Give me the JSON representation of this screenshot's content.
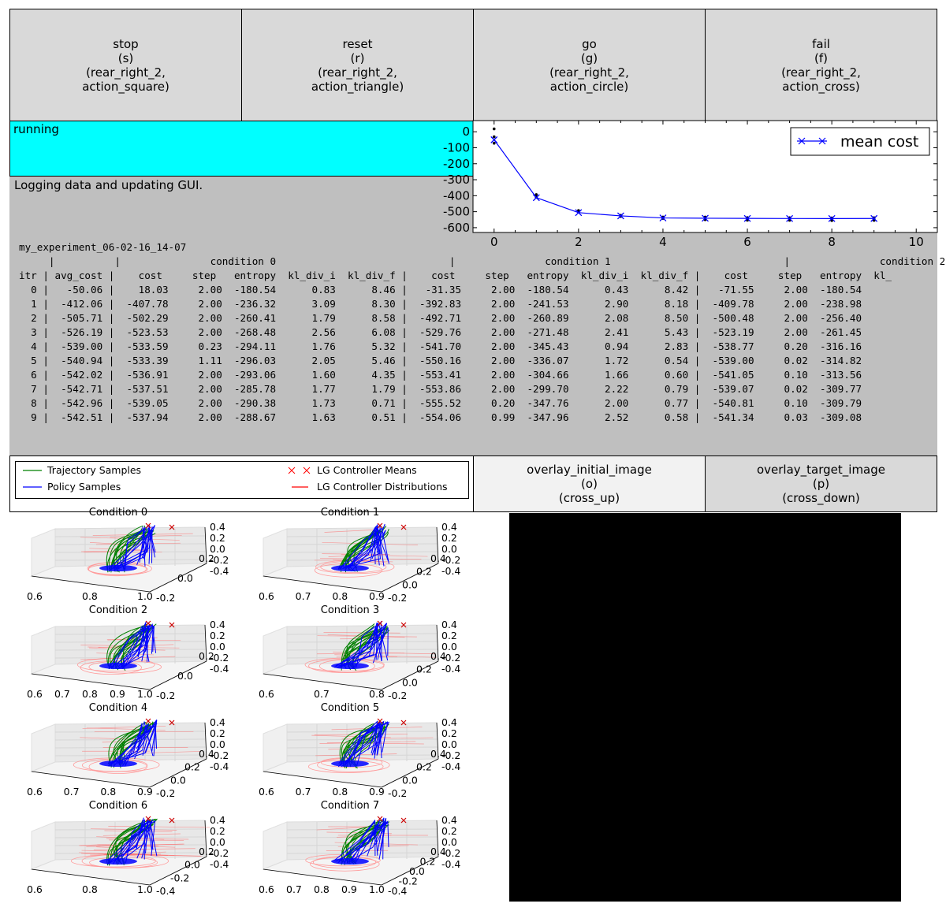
{
  "actions": [
    {
      "label": "stop",
      "key": "(s)",
      "trigger1": "(rear_right_2,",
      "trigger2": "action_square)"
    },
    {
      "label": "reset",
      "key": "(r)",
      "trigger1": "(rear_right_2,",
      "trigger2": "action_triangle)"
    },
    {
      "label": "go",
      "key": "(g)",
      "trigger1": "(rear_right_2,",
      "trigger2": "action_circle)"
    },
    {
      "label": "fail",
      "key": "(f)",
      "trigger1": "(rear_right_2,",
      "trigger2": "action_cross)"
    }
  ],
  "status": {
    "text": "running",
    "color": "#00ffff"
  },
  "message": "Logging data and updating GUI.",
  "experiment_name": "my_experiment_06-02-16_14-07",
  "table": {
    "group_header": "     |          |               condition 0                             |               condition 1                             |               condition 2",
    "column_header": "itr | avg_cost |    cost     step   entropy  kl_div_i  kl_div_f |    cost     step   entropy  kl_div_i  kl_div_f |    cost     step   entropy  kl_",
    "rows": [
      "  0 |   -50.06 |    18.03     2.00  -180.54      0.83      8.46 |   -31.35     2.00  -180.54      0.43      8.42 |   -71.55     2.00  -180.54",
      "  1 |  -412.06 |  -407.78     2.00  -236.32      3.09      8.30 |  -392.83     2.00  -241.53      2.90      8.18 |  -409.78     2.00  -238.98",
      "  2 |  -505.71 |  -502.29     2.00  -260.41      1.79      8.58 |  -492.71     2.00  -260.89      2.08      8.50 |  -500.48     2.00  -256.40",
      "  3 |  -526.19 |  -523.53     2.00  -268.48      2.56      6.08 |  -529.76     2.00  -271.48      2.41      5.43 |  -523.19     2.00  -261.45",
      "  4 |  -539.00 |  -533.59     0.23  -294.11      1.76      5.32 |  -541.70     2.00  -345.43      0.94      2.83 |  -538.77     0.20  -316.16",
      "  5 |  -540.94 |  -533.39     1.11  -296.03      2.05      5.46 |  -550.16     2.00  -336.07      1.72      0.54 |  -539.00     0.02  -314.82",
      "  6 |  -542.02 |  -536.91     2.00  -293.06      1.60      4.35 |  -553.41     2.00  -304.66      1.66      0.60 |  -541.05     0.10  -313.56",
      "  7 |  -542.71 |  -537.51     2.00  -285.78      1.77      1.79 |  -553.86     2.00  -299.70      2.22      0.79 |  -539.07     0.02  -309.77",
      "  8 |  -542.96 |  -539.05     2.00  -290.38      1.73      0.71 |  -555.52     0.20  -347.76      2.00      0.77 |  -540.81     0.10  -309.79",
      "  9 |  -542.51 |  -537.94     2.00  -288.67      1.63      0.51 |  -554.06     0.99  -347.96      2.52      0.58 |  -541.34     0.03  -309.08"
    ]
  },
  "chart_data": {
    "type": "line",
    "x": [
      0,
      1,
      2,
      3,
      4,
      5,
      6,
      7,
      8,
      9
    ],
    "series": [
      {
        "name": "mean cost",
        "values": [
          -50.06,
          -412.06,
          -505.71,
          -526.19,
          -539.0,
          -540.94,
          -542.02,
          -542.71,
          -542.96,
          -542.51
        ],
        "color": "#0000ff",
        "marker": "x"
      }
    ],
    "samples": [
      [
        18.03,
        -31.35,
        -71.55
      ],
      [
        -407.78,
        -392.83,
        -409.78
      ],
      [
        -502.29,
        -492.71,
        -500.48
      ],
      [
        -523.53,
        -529.76,
        -523.19
      ],
      [
        -533.59,
        -541.7,
        -538.77
      ],
      [
        -533.39,
        -550.16,
        -539.0
      ],
      [
        -536.91,
        -553.41,
        -541.05
      ],
      [
        -537.51,
        -553.86,
        -539.07
      ],
      [
        -539.05,
        -555.52,
        -540.81
      ],
      [
        -537.94,
        -554.06,
        -541.34
      ]
    ],
    "xlim": [
      -0.5,
      10.5
    ],
    "ylim": [
      -630,
      70
    ],
    "xticks": [
      0,
      2,
      4,
      6,
      8,
      10
    ],
    "yticks": [
      0,
      -100,
      -200,
      -300,
      -400,
      -500,
      -600
    ],
    "legend_position": "top-right",
    "grid": false
  },
  "traj_legend": {
    "trajectory": "Trajectory Samples",
    "policy": "Policy Samples",
    "means": "LG Controller Means",
    "dists": "LG Controller Distributions"
  },
  "overlay_buttons": [
    {
      "label": "overlay_initial_image",
      "key": "(o)",
      "trigger": "(cross_up)"
    },
    {
      "label": "overlay_target_image",
      "key": "(p)",
      "trigger": "(cross_down)"
    }
  ],
  "conditions": [
    {
      "title": "Condition 0",
      "xticks": [
        "0.6",
        "0.8",
        "1.0"
      ],
      "yticks": [
        "-0.2",
        "0.0",
        "0.2"
      ],
      "zticks": [
        "0.4",
        "0.2",
        "0.0",
        "-0.2",
        "-0.4"
      ]
    },
    {
      "title": "Condition 1",
      "xticks": [
        "0.6",
        "0.7",
        "0.8",
        "0.9"
      ],
      "yticks": [
        "-0.2",
        "0.0",
        "0.2",
        "0.4"
      ],
      "zticks": [
        "0.4",
        "0.2",
        "0.0",
        "-0.2",
        "-0.4"
      ]
    },
    {
      "title": "Condition 2",
      "xticks": [
        "0.6",
        "0.7",
        "0.8",
        "0.9",
        "1.0"
      ],
      "yticks": [
        "-0.2",
        "0.0",
        "0.2"
      ],
      "zticks": [
        "0.4",
        "0.2",
        "0.0",
        "-0.2",
        "-0.4"
      ]
    },
    {
      "title": "Condition 3",
      "xticks": [
        "0.6",
        "0.7",
        "0.8"
      ],
      "yticks": [
        "-0.2",
        "0.0",
        "0.2",
        "0.4"
      ],
      "zticks": [
        "0.4",
        "0.2",
        "0.0",
        "-0.2",
        "-0.4"
      ]
    },
    {
      "title": "Condition 4",
      "xticks": [
        "0.6",
        "0.7",
        "0.8",
        "0.9"
      ],
      "yticks": [
        "-0.2",
        "0.0",
        "0.2",
        "0.4"
      ],
      "zticks": [
        "0.4",
        "0.2",
        "0.0",
        "-0.2",
        "-0.4"
      ]
    },
    {
      "title": "Condition 5",
      "xticks": [
        "0.6",
        "0.7",
        "0.8",
        "0.9"
      ],
      "yticks": [
        "-0.2",
        "0.0",
        "0.2",
        "0.4"
      ],
      "zticks": [
        "0.4",
        "0.2",
        "0.0",
        "-0.2",
        "-0.4"
      ]
    },
    {
      "title": "Condition 6",
      "xticks": [
        "0.6",
        "0.8",
        "1.0"
      ],
      "yticks": [
        "-0.4",
        "-0.2",
        "0.0",
        "0.2"
      ],
      "zticks": [
        "0.4",
        "0.2",
        "0.0",
        "-0.2",
        "-0.4"
      ]
    },
    {
      "title": "Condition 7",
      "xticks": [
        "0.6",
        "0.7",
        "0.8",
        "0.9",
        "1.0"
      ],
      "yticks": [
        "-0.4",
        "-0.2",
        "0.0",
        "0.2",
        "0.4"
      ],
      "zticks": [
        "0.4",
        "0.2",
        "0.0",
        "-0.2",
        "-0.4"
      ]
    }
  ],
  "colors": {
    "trajectory": "#008000",
    "policy": "#0000ff",
    "means": "#ff0000",
    "dists": "#ff0000",
    "panel_gray": "#bfbfbf",
    "button_gray": "#d9d9d9"
  }
}
